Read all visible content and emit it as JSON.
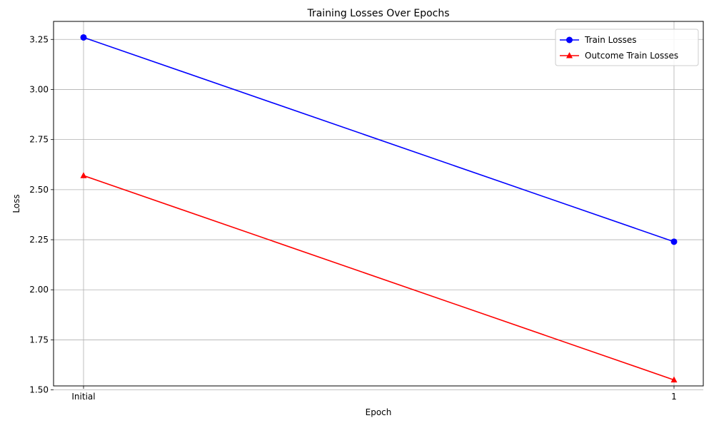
{
  "chart_data": {
    "type": "line",
    "title": "Training Losses Over Epochs",
    "xlabel": "Epoch",
    "ylabel": "Loss",
    "categories": [
      "Initial",
      "1"
    ],
    "ylim": [
      1.52,
      3.34
    ],
    "yticks": [
      1.5,
      1.75,
      2.0,
      2.25,
      2.5,
      2.75,
      3.0,
      3.25
    ],
    "ytick_labels": [
      "1.50",
      "1.75",
      "2.00",
      "2.25",
      "2.50",
      "2.75",
      "3.00",
      "3.25"
    ],
    "grid": true,
    "legend_position": "top-right",
    "series": [
      {
        "name": "Train Losses",
        "values": [
          3.26,
          2.24
        ],
        "color": "#0000ff",
        "marker": "circle"
      },
      {
        "name": "Outcome Train Losses",
        "values": [
          2.57,
          1.55
        ],
        "color": "#ff0000",
        "marker": "triangle"
      }
    ]
  }
}
